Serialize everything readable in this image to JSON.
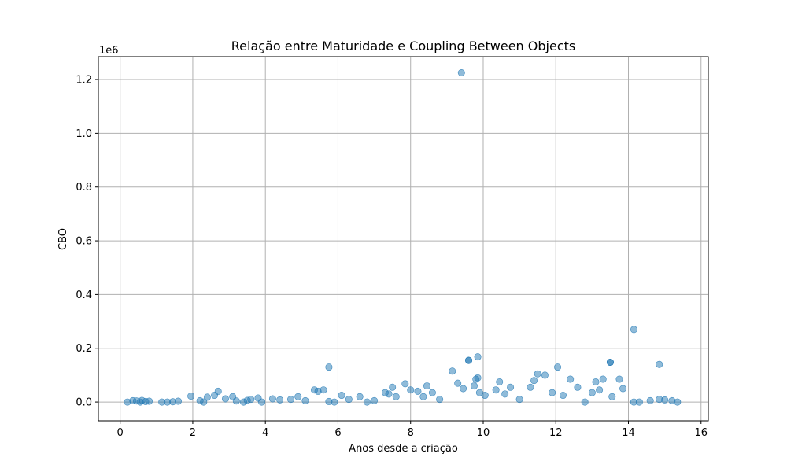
{
  "chart_data": {
    "type": "scatter",
    "title": "Relação entre Maturidade e Coupling Between Objects",
    "xlabel": "Anos desde a criação",
    "ylabel": "CBO",
    "y_offset_label": "1e6",
    "xlim": [
      -0.6,
      16.2
    ],
    "ylim": [
      -0.07,
      1.285
    ],
    "x_ticks": [
      0,
      2,
      4,
      6,
      8,
      10,
      12,
      14,
      16
    ],
    "x_tick_labels": [
      "0",
      "2",
      "4",
      "6",
      "8",
      "10",
      "12",
      "14",
      "16"
    ],
    "y_ticks": [
      0.0,
      0.2,
      0.4,
      0.6,
      0.8,
      1.0,
      1.2
    ],
    "y_tick_labels": [
      "0.0",
      "0.2",
      "0.4",
      "0.6",
      "0.8",
      "1.0",
      "1.2"
    ],
    "grid": true,
    "point_color": "#1f77b4",
    "point_alpha": 0.5,
    "series": [
      {
        "x": [
          0.2,
          0.35,
          0.45,
          0.55,
          0.6,
          0.7,
          0.8,
          1.15,
          1.3,
          1.45,
          1.6,
          1.95,
          2.2,
          2.3,
          2.4,
          2.6,
          2.7,
          2.9,
          3.1,
          3.2,
          3.4,
          3.5,
          3.6,
          3.8,
          3.9,
          4.2,
          4.4,
          4.7,
          4.9,
          5.1,
          5.35,
          5.45,
          5.6,
          5.75,
          5.9,
          6.1,
          6.3,
          6.6,
          6.8,
          7.0,
          7.3,
          7.4,
          7.5,
          7.6,
          7.85,
          8.0,
          8.2,
          8.35,
          8.45,
          8.6,
          8.8,
          9.15,
          9.3,
          9.45,
          9.6,
          9.75,
          9.8,
          9.85,
          9.9,
          10.05,
          10.35,
          10.45,
          10.6,
          10.75,
          11.0,
          11.3,
          11.4,
          11.5,
          11.7,
          11.9,
          12.05,
          12.2,
          12.4,
          12.6,
          12.8,
          13.0,
          13.1,
          13.2,
          13.3,
          13.5,
          13.55,
          13.75,
          13.85,
          14.15,
          14.3,
          14.6,
          14.85,
          15.0,
          15.2,
          15.35,
          9.4,
          14.15,
          14.85,
          5.75,
          9.6,
          9.85,
          13.5
        ],
        "y": [
          0.0,
          0.005,
          0.004,
          0.0,
          0.006,
          0.002,
          0.003,
          0.0,
          0.0,
          0.001,
          0.003,
          0.022,
          0.005,
          0.0,
          0.018,
          0.025,
          0.04,
          0.012,
          0.02,
          0.004,
          0.0,
          0.006,
          0.01,
          0.015,
          0.0,
          0.012,
          0.008,
          0.01,
          0.02,
          0.005,
          0.045,
          0.04,
          0.045,
          0.002,
          0.0,
          0.025,
          0.01,
          0.02,
          0.0,
          0.005,
          0.035,
          0.03,
          0.055,
          0.02,
          0.068,
          0.045,
          0.04,
          0.02,
          0.06,
          0.035,
          0.01,
          0.115,
          0.07,
          0.05,
          0.155,
          0.06,
          0.085,
          0.09,
          0.035,
          0.025,
          0.045,
          0.075,
          0.03,
          0.055,
          0.01,
          0.055,
          0.08,
          0.105,
          0.1,
          0.035,
          0.13,
          0.025,
          0.085,
          0.055,
          0.0,
          0.035,
          0.075,
          0.045,
          0.085,
          0.148,
          0.02,
          0.085,
          0.05,
          0.0,
          0.0,
          0.005,
          0.01,
          0.008,
          0.005,
          0.0,
          1.225,
          0.27,
          0.14,
          0.13,
          0.155,
          0.168,
          0.148
        ]
      }
    ]
  }
}
